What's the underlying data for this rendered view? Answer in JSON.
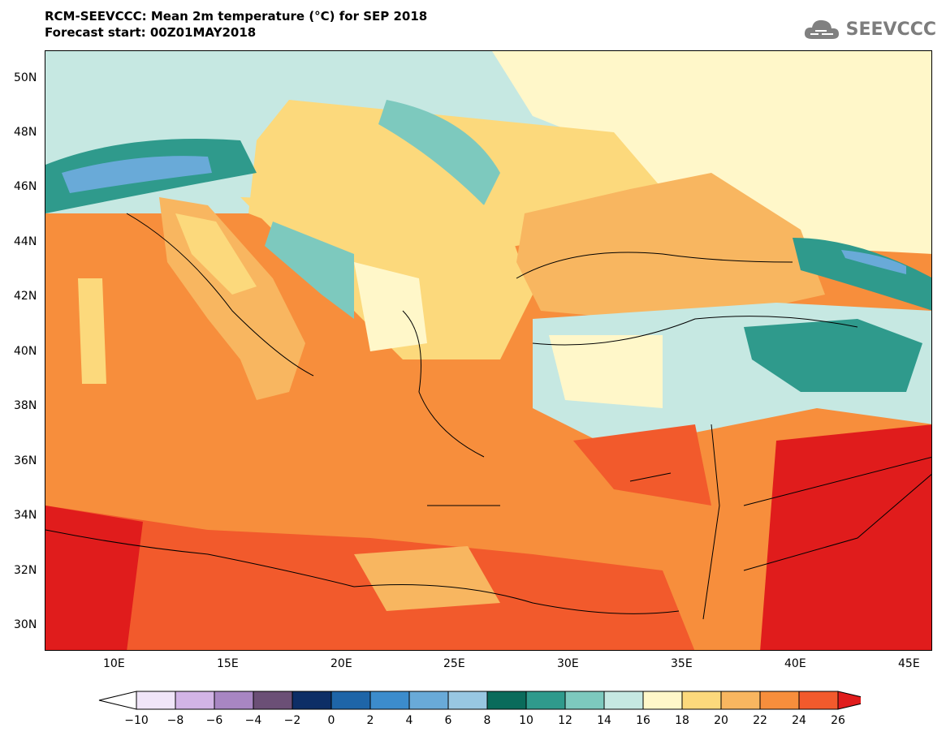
{
  "header": {
    "title_line1": "RCM-SEEVCCC: Mean 2m temperature (°C) for SEP 2018",
    "title_line2": "Forecast start: 00Z01MAY2018",
    "logo_text": "SEEVCCC"
  },
  "map": {
    "lat_labels": [
      "50N",
      "48N",
      "46N",
      "44N",
      "42N",
      "40N",
      "38N",
      "36N",
      "34N",
      "32N",
      "30N"
    ],
    "lon_labels": [
      "10E",
      "15E",
      "20E",
      "25E",
      "30E",
      "35E",
      "40E",
      "45E"
    ]
  },
  "colorbar": {
    "tick_labels": [
      "-10",
      "-8",
      "-6",
      "-4",
      "-2",
      "0",
      "2",
      "4",
      "6",
      "8",
      "10",
      "12",
      "14",
      "16",
      "18",
      "20",
      "22",
      "24",
      "26"
    ],
    "colors": [
      "#f0e5f8",
      "#d2b4e6",
      "#a886c3",
      "#6b4f76",
      "#0d2e66",
      "#1e65a8",
      "#3c8ccc",
      "#69aad8",
      "#98c7e2",
      "#0a6b5b",
      "#2f9a8c",
      "#7dc9be",
      "#c6e8e2",
      "#fff7c9",
      "#fcd97c",
      "#f8b660",
      "#f78e3c",
      "#f25a2c",
      "#e01c1c"
    ],
    "left_extension_color": "#ffffff",
    "right_extension_color": "#e01c1c"
  }
}
